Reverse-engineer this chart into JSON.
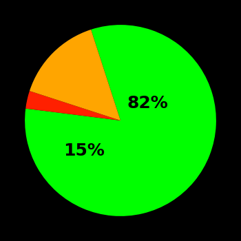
{
  "slices": [
    82,
    3,
    15
  ],
  "colors": [
    "#00ff00",
    "#ff2000",
    "#ffa500"
  ],
  "labels": [
    "82%",
    "",
    "15%"
  ],
  "background_color": "#000000",
  "label_fontsize": 18,
  "label_fontweight": "bold",
  "startangle": 108,
  "figsize": [
    3.5,
    3.5
  ],
  "dpi": 100,
  "label_positions": [
    [
      0.28,
      0.18
    ],
    [
      null,
      null
    ],
    [
      -0.38,
      -0.32
    ]
  ]
}
